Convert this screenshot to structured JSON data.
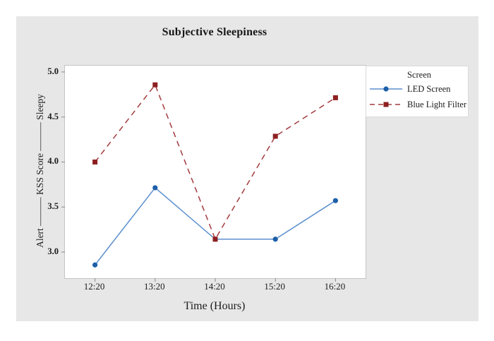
{
  "figure": {
    "panel_background": "#e7e7e7",
    "plot_background": "#ffffff",
    "axis_color": "#8a8a8a"
  },
  "chart_data": {
    "type": "line",
    "title": "Subjective Sleepiness",
    "xlabel": "Time (Hours)",
    "ylabel": "Alert ——— KSS Score ——— Sleepy",
    "x_labels": [
      "12:20",
      "13:20",
      "14:20",
      "15:20",
      "16:20"
    ],
    "y_ticks": [
      5.0,
      4.5,
      4.0,
      3.5,
      3.0
    ],
    "ylim": [
      2.71,
      5.07
    ],
    "grid": false,
    "legend": {
      "title": "Screen",
      "position": "right"
    },
    "series": [
      {
        "name": "LED Screen",
        "values": [
          2.857,
          3.714,
          3.143,
          3.143,
          3.571
        ],
        "line_color": "#5b8fce",
        "marker_color": "#1d5fa8",
        "marker": "circle",
        "dash": null
      },
      {
        "name": "Blue Light Filter",
        "values": [
          4.0,
          4.857,
          3.143,
          4.286,
          4.714
        ],
        "line_color": "#a33b3e",
        "marker_color": "#8e1f20",
        "marker": "square",
        "dash": "8 6"
      }
    ]
  }
}
